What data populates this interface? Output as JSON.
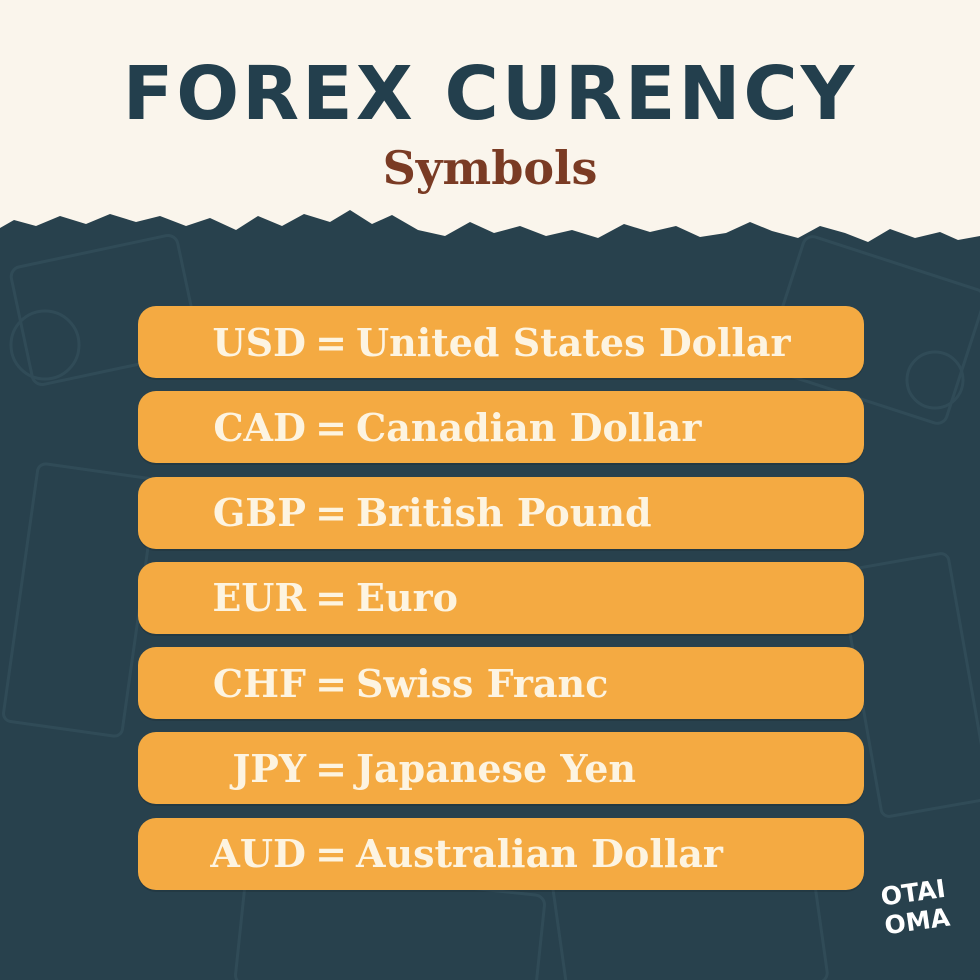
{
  "header": {
    "title": "FOREX CURENCY",
    "subtitle": "Symbols"
  },
  "currencies": [
    {
      "code": "USD",
      "equals": "=",
      "name": "United States Dollar"
    },
    {
      "code": "CAD",
      "equals": "=",
      "name": "Canadian Dollar"
    },
    {
      "code": "GBP",
      "equals": "=",
      "name": "British Pound"
    },
    {
      "code": "EUR",
      "equals": "=",
      "name": "Euro"
    },
    {
      "code": "CHF",
      "equals": "=",
      "name": "Swiss Franc"
    },
    {
      "code": "JPY",
      "equals": "=",
      "name": "Japanese Yen"
    },
    {
      "code": "AUD",
      "equals": "=",
      "name": "Australian Dollar"
    }
  ],
  "logo": {
    "line1": "OTAI",
    "line2": "OMA"
  },
  "colors": {
    "cream": "#faf5ec",
    "navy": "#28414d",
    "title": "#233f4d",
    "subtitle": "#7a3b24",
    "row": "#f4aa42",
    "row_text": "#fdf4e1"
  }
}
